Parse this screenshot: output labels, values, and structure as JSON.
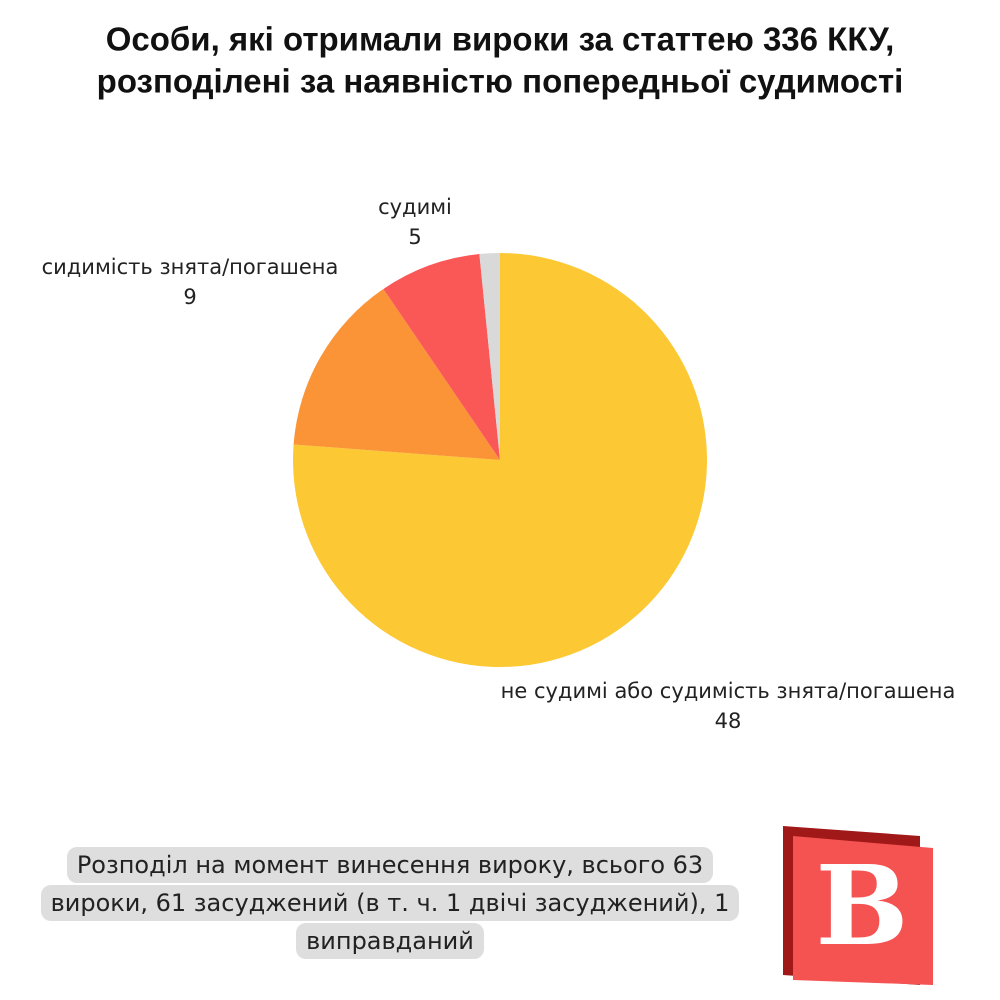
{
  "chart_data": {
    "type": "pie",
    "title": [
      "Особи, які отримали вироки за статтею 336 ККУ,",
      "розподілені за наявністю попередньої судимості"
    ],
    "categories": [
      "не судимі або судимість знята/погашена",
      "сидимість знята/погашена",
      "судимі",
      null
    ],
    "values": [
      48,
      9,
      5,
      1
    ],
    "colors": [
      "#fcc834",
      "#fb9437",
      "#fa5757",
      "#d9d9d9"
    ],
    "start_angle": 0,
    "direction": "clockwise"
  },
  "note": "Розподіл на момент винесення вироку, всього 63 вироки, 61 засуджений (в т. ч. 1 двічі засуджений), 1 виправданий",
  "logo": "B"
}
